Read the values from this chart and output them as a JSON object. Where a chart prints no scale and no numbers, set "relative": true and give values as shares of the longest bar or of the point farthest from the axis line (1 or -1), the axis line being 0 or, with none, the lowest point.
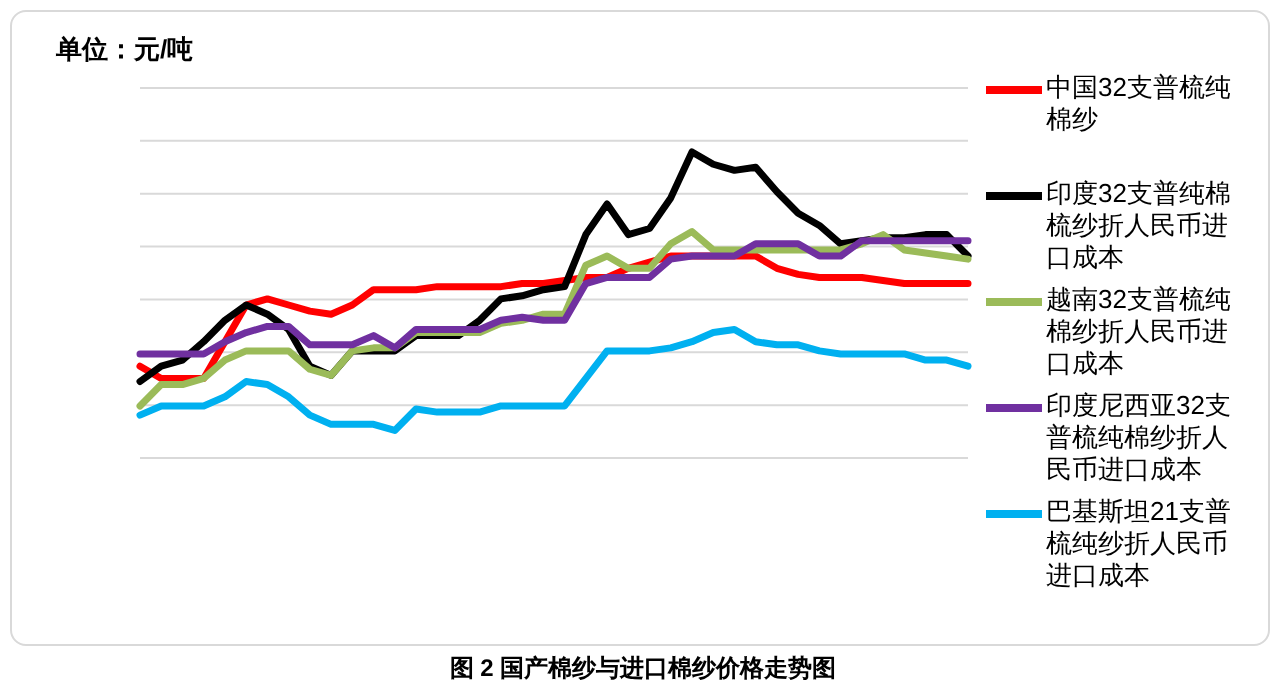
{
  "chart_data": {
    "type": "line",
    "title": "单位：元/吨",
    "relative": true,
    "grid": "y",
    "legend": "right",
    "marker": "none",
    "line_style": "solid",
    "categories": [
      null,
      null,
      null,
      null,
      null,
      null,
      null,
      null,
      null,
      null,
      null,
      null,
      null,
      null,
      null,
      null,
      null,
      null,
      null,
      null,
      null,
      null,
      null,
      null,
      null,
      null,
      null,
      null,
      null,
      null,
      null,
      null,
      null,
      null,
      null,
      null,
      null,
      null,
      null,
      null
    ],
    "series": [
      {
        "name": "中国32支普梳纯棉纱",
        "color": "#ff0000",
        "values": [
          0.3,
          0.26,
          0.26,
          0.26,
          0.38,
          0.5,
          0.52,
          0.5,
          0.48,
          0.47,
          0.5,
          0.55,
          0.55,
          0.55,
          0.56,
          0.56,
          0.56,
          0.56,
          0.57,
          0.57,
          0.58,
          0.59,
          0.59,
          0.62,
          0.64,
          0.66,
          0.66,
          0.66,
          0.66,
          0.66,
          0.62,
          0.6,
          0.59,
          0.59,
          0.59,
          0.58,
          0.57,
          0.57,
          0.57,
          0.57
        ]
      },
      {
        "name": "印度32支普纯棉梳纱折人民币进口成本",
        "color": "#000000",
        "values": [
          0.25,
          0.3,
          0.32,
          0.38,
          0.45,
          0.5,
          0.47,
          0.42,
          0.3,
          0.27,
          0.35,
          0.35,
          0.35,
          0.4,
          0.4,
          0.4,
          0.45,
          0.52,
          0.53,
          0.55,
          0.56,
          0.73,
          0.83,
          0.73,
          0.75,
          0.85,
          1.0,
          0.96,
          0.94,
          0.95,
          0.87,
          0.8,
          0.76,
          0.7,
          0.71,
          0.72,
          0.72,
          0.73,
          0.73,
          0.66
        ]
      },
      {
        "name": "越南32支普梳纯棉纱折人民币进口成本",
        "color": "#9bbb59",
        "values": [
          0.17,
          0.24,
          0.24,
          0.26,
          0.32,
          0.35,
          0.35,
          0.35,
          0.29,
          0.27,
          0.35,
          0.36,
          0.36,
          0.41,
          0.41,
          0.41,
          0.41,
          0.44,
          0.45,
          0.47,
          0.47,
          0.63,
          0.66,
          0.62,
          0.62,
          0.7,
          0.74,
          0.68,
          0.68,
          0.68,
          0.68,
          0.68,
          0.68,
          0.68,
          0.7,
          0.73,
          0.68,
          0.67,
          0.66,
          0.65
        ]
      },
      {
        "name": "印度尼西亚32支普梳纯棉纱折人民币进口成本",
        "color": "#7030a0",
        "values": [
          0.34,
          0.34,
          0.34,
          0.34,
          0.38,
          0.41,
          0.43,
          0.43,
          0.37,
          0.37,
          0.37,
          0.4,
          0.36,
          0.42,
          0.42,
          0.42,
          0.42,
          0.45,
          0.46,
          0.45,
          0.45,
          0.57,
          0.59,
          0.59,
          0.59,
          0.65,
          0.66,
          0.66,
          0.66,
          0.7,
          0.7,
          0.7,
          0.66,
          0.66,
          0.71,
          0.71,
          0.71,
          0.71,
          0.71,
          0.71
        ]
      },
      {
        "name": "巴基斯坦21支普梳纯纱折人民币进口成本",
        "color": "#00b0f0",
        "values": [
          0.14,
          0.17,
          0.17,
          0.17,
          0.2,
          0.25,
          0.24,
          0.2,
          0.14,
          0.11,
          0.11,
          0.11,
          0.09,
          0.16,
          0.15,
          0.15,
          0.15,
          0.17,
          0.17,
          0.17,
          0.17,
          0.26,
          0.35,
          0.35,
          0.35,
          0.36,
          0.38,
          0.41,
          0.42,
          0.38,
          0.37,
          0.37,
          0.35,
          0.34,
          0.34,
          0.34,
          0.34,
          0.32,
          0.32,
          0.3
        ]
      }
    ],
    "annotations": [
      "图 2 国产棉纱与进口棉纱价格走势图"
    ]
  }
}
